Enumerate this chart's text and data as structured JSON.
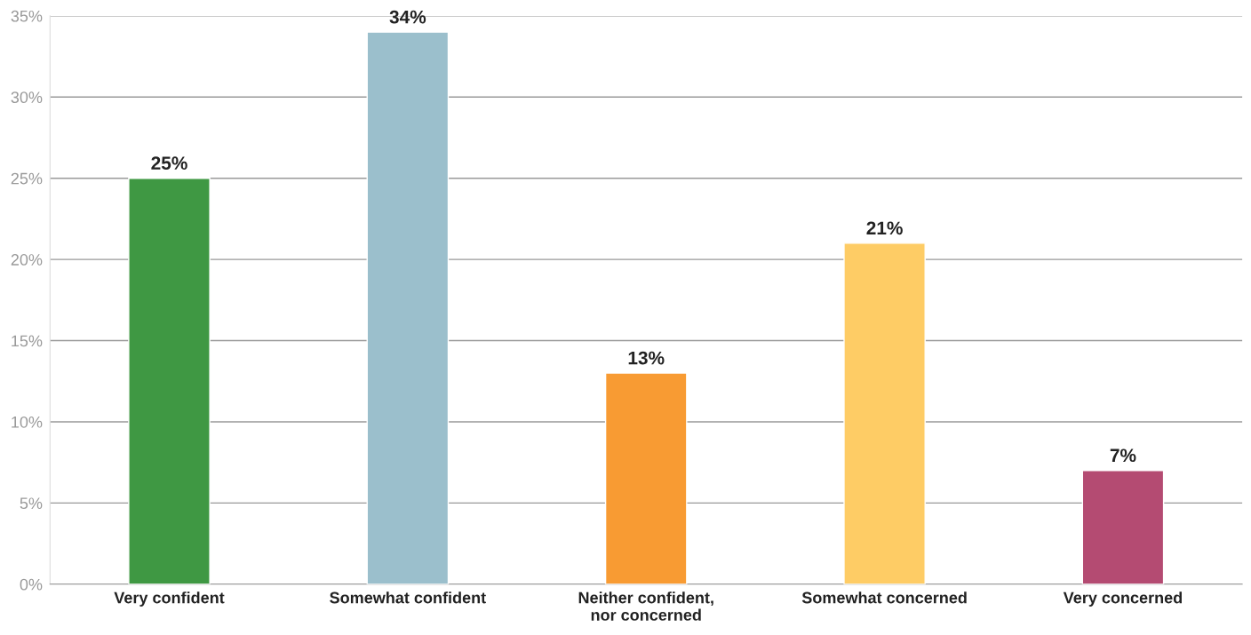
{
  "chart_data": {
    "type": "bar",
    "categories": [
      "Very confident",
      "Somewhat confident",
      "Neither confident,\nnor concerned",
      "Somewhat concerned",
      "Very concerned"
    ],
    "values": [
      25,
      34,
      13,
      21,
      7
    ],
    "colors": [
      "#3f9843",
      "#9bbfcc",
      "#f89b33",
      "#fecc65",
      "#b44b72"
    ],
    "value_labels": [
      "25%",
      "34%",
      "13%",
      "21%",
      "7%"
    ],
    "ylim": [
      0,
      35
    ],
    "yticks": [
      {
        "value": 0,
        "label": "0%"
      },
      {
        "value": 5,
        "label": "5%"
      },
      {
        "value": 10,
        "label": "10%"
      },
      {
        "value": 15,
        "label": "15%"
      },
      {
        "value": 20,
        "label": "20%"
      },
      {
        "value": 25,
        "label": "25%"
      },
      {
        "value": 30,
        "label": "30%"
      },
      {
        "value": 35,
        "label": "35%"
      }
    ],
    "grid": "y"
  }
}
